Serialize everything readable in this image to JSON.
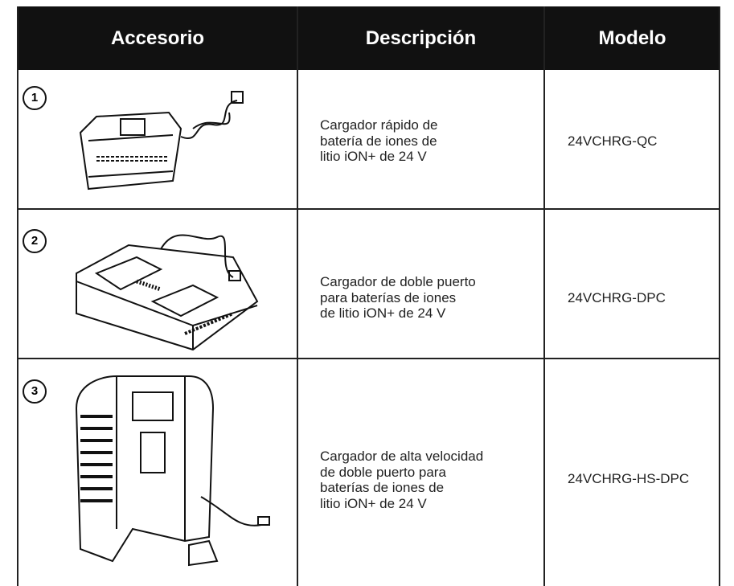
{
  "table": {
    "header": [
      "Accesorio",
      "Descripción",
      "Modelo"
    ],
    "rows": [
      {
        "number": "1",
        "description": [
          "Cargador rápido de",
          "batería de iones de",
          "litio iON+ de 24 V"
        ],
        "model": "24VCHRG-QC"
      },
      {
        "number": "2",
        "description": [
          "Cargador de doble puerto",
          "para baterías de iones",
          "de litio iON+ de 24 V"
        ],
        "model": "24VCHRG-DPC"
      },
      {
        "number": "3",
        "description": [
          "Cargador de alta velocidad",
          "de doble puerto para",
          "baterías de iones de",
          "litio iON+ de 24 V"
        ],
        "model": "24VCHRG-HS-DPC"
      }
    ]
  }
}
